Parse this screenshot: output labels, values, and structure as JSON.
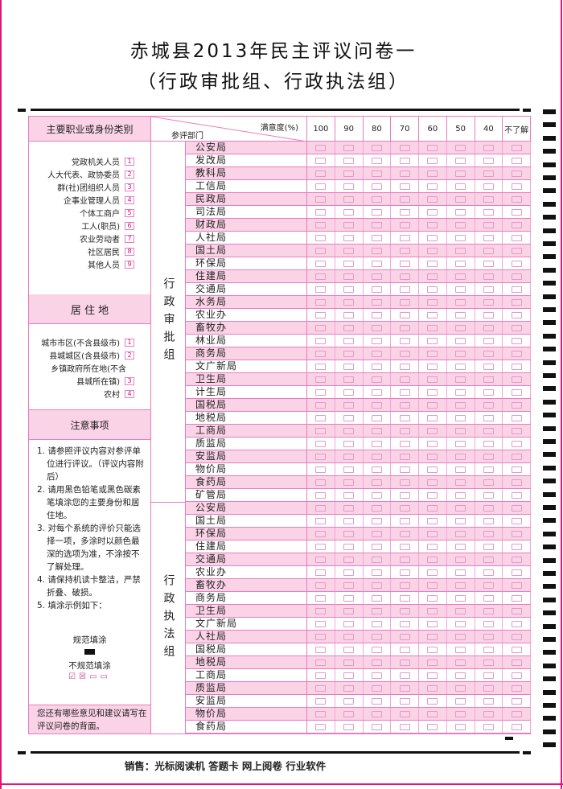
{
  "title_line1": "赤城县2013年民主评议问卷一",
  "title_line2": "（行政审批组、行政执法组）",
  "left": {
    "identity_header": "主要职业或身份类别",
    "identity_options": [
      {
        "label": "党政机关人员",
        "code": "1"
      },
      {
        "label": "人大代表、政协委员",
        "code": "2"
      },
      {
        "label": "群(社)团组织人员",
        "code": "3"
      },
      {
        "label": "企事业管理人员",
        "code": "4"
      },
      {
        "label": "个体工商户",
        "code": "5"
      },
      {
        "label": "工人(职员)",
        "code": "6"
      },
      {
        "label": "农业劳动者",
        "code": "7"
      },
      {
        "label": "社区居民",
        "code": "8"
      },
      {
        "label": "其他人员",
        "code": "9"
      }
    ],
    "residence_header": "居 住 地",
    "residence_options": [
      {
        "label": "城市市区(不含县级市)",
        "code": "1"
      },
      {
        "label": "县城城区(含县级市)",
        "code": "2"
      },
      {
        "label": "乡镇政府所在地(不含",
        "code": ""
      },
      {
        "label": "县城所在镇)",
        "code": "3"
      },
      {
        "label": "农村",
        "code": "4"
      }
    ],
    "notes_header": "注意事项",
    "notes": [
      "1. 请参照评议内容对参评单位进行评议。（评议内容附后）",
      "2. 请用黑色铅笔或黑色碳素笔填涂您的主要身份和居住地。",
      "3. 对每个系统的评价只能选择一项，多涂时以颜色最深的选项为准，不涂按不了解处理。",
      "4. 请保持机读卡整洁，严禁折叠、破损。",
      "5. 填涂示例如下："
    ],
    "correct_fill": "规范填涂",
    "incorrect_fill": "不规范填涂",
    "bottom_note": "您还有哪些意见和建议请写在评议问卷的背面。"
  },
  "table": {
    "header_satisfaction": "满意度(%)",
    "header_dept": "参评部门",
    "columns": [
      "100",
      "90",
      "80",
      "70",
      "60",
      "50",
      "40",
      "不了解"
    ],
    "groups": [
      {
        "name": "行政审批组",
        "depts": [
          "公安局",
          "发改局",
          "教科局",
          "工信局",
          "民政局",
          "司法局",
          "财政局",
          "人社局",
          "国土局",
          "环保局",
          "住建局",
          "交通局",
          "水务局",
          "农业办",
          "畜牧办",
          "林业局",
          "商务局",
          "文广新局",
          "卫生局",
          "计生局",
          "国税局",
          "地税局",
          "工商局",
          "质监局",
          "安监局",
          "物价局",
          "食药局",
          "矿管局"
        ]
      },
      {
        "name": "行政执法组",
        "depts": [
          "公安局",
          "国土局",
          "环保局",
          "住建局",
          "交通局",
          "农业办",
          "畜牧办",
          "商务局",
          "卫生局",
          "文广新局",
          "人社局",
          "国税局",
          "地税局",
          "工商局",
          "质监局",
          "安监局",
          "物价局",
          "食药局"
        ]
      }
    ]
  },
  "footer": "销售：光标阅读机  答题卡  网上阅卷  行业软件",
  "colors": {
    "pink": "#fbd3e6",
    "border": "#e87cc0",
    "edge": "#e0157a"
  }
}
